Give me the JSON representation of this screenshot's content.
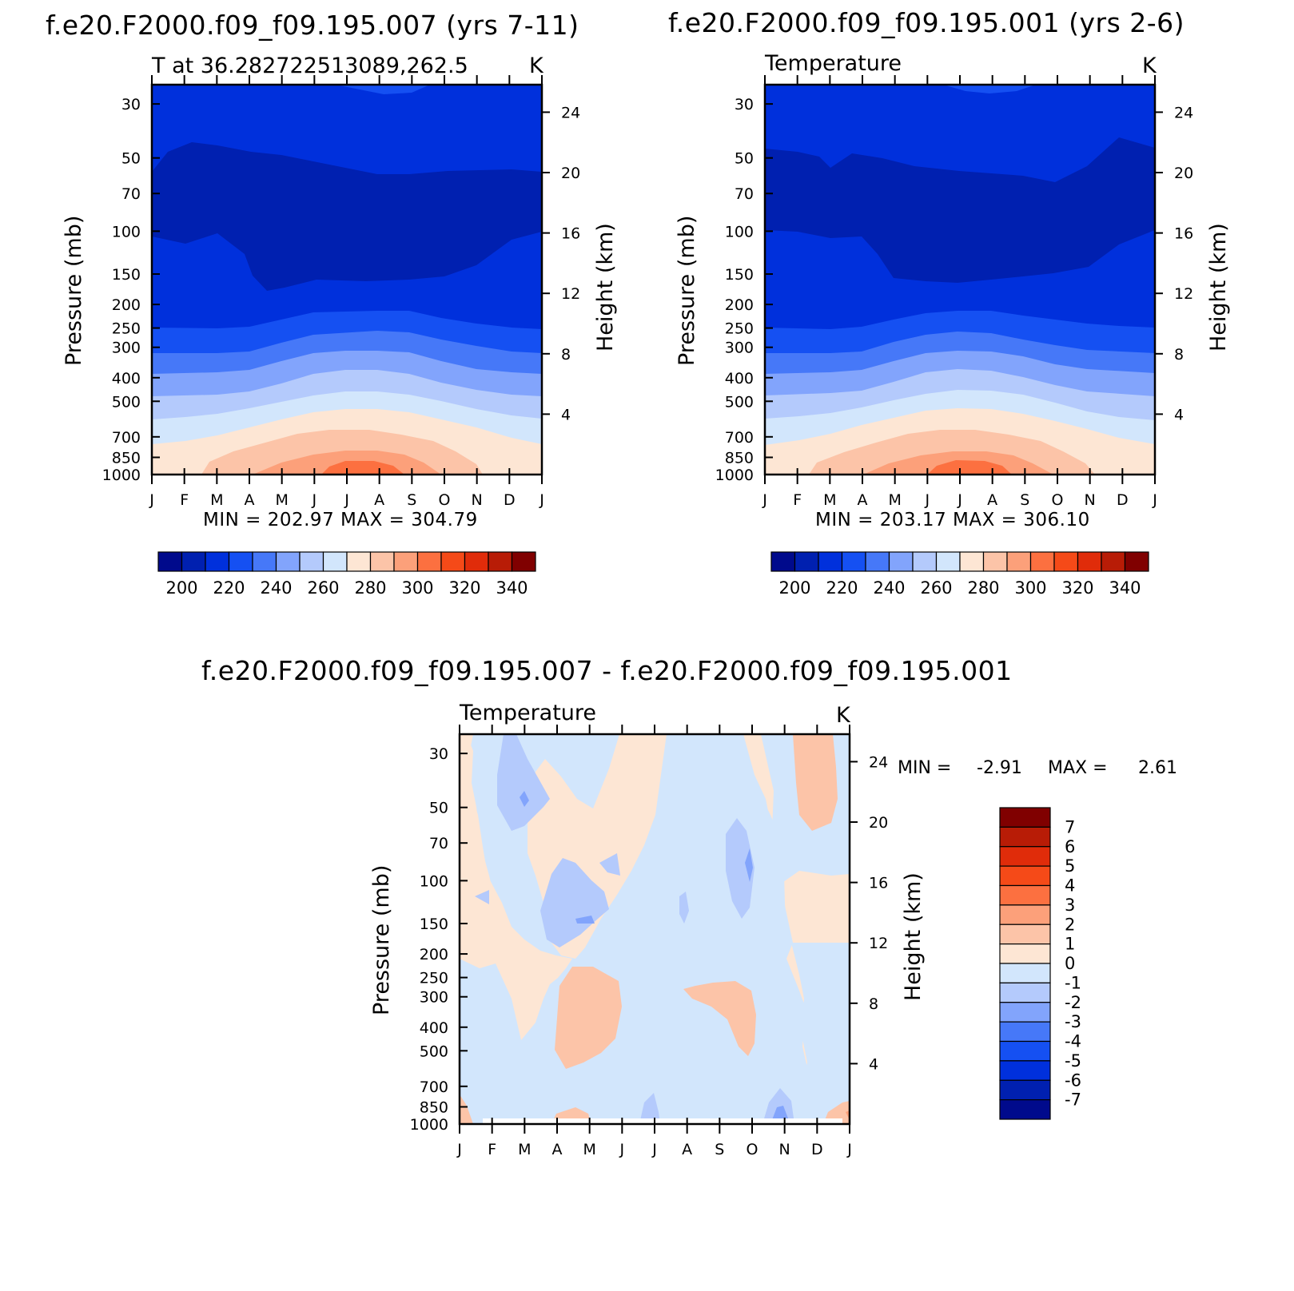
{
  "figure": {
    "top_left_title": "f.e20.F2000.f09_f09.195.007 (yrs 7-11)",
    "top_right_title": "f.e20.F2000.f09_f09.195.001 (yrs 2-6)",
    "bottom_title": "f.e20.F2000.f09_f09.195.007 - f.e20.F2000.f09_f09.195.001"
  },
  "chart_data": [
    {
      "id": "case1",
      "type": "heatmap",
      "variable_label": "T at 36.282722513089,262.5",
      "units": "K",
      "ylabel": "Pressure (mb)",
      "ylabel_right": "Height (km)",
      "x_ticks": [
        "J",
        "F",
        "M",
        "A",
        "M",
        "J",
        "J",
        "A",
        "S",
        "O",
        "N",
        "D",
        "J"
      ],
      "pressure_ticks": [
        30,
        50,
        70,
        100,
        150,
        200,
        250,
        300,
        400,
        500,
        700,
        850,
        1000
      ],
      "height_ticks": [
        24,
        20,
        16,
        12,
        8,
        4
      ],
      "stats": "MIN = 202.97 MAX = 304.79",
      "ylim": [
        1000,
        25
      ],
      "colorbar_labels": [
        "200",
        "220",
        "240",
        "260",
        "280",
        "300",
        "320",
        "340"
      ],
      "colorbar_colors": [
        "#000a8c",
        "#0020b0",
        "#0030dc",
        "#1550f2",
        "#4678f8",
        "#82a4fc",
        "#b4cafc",
        "#d2e6fc",
        "#fde6d4",
        "#fcc4a8",
        "#fca07a",
        "#fc7040",
        "#f54a18",
        "#e02c0a",
        "#b81c06",
        "#800000"
      ],
      "values_K": {
        "p_1000_jul": 304,
        "p_850_jul": 297,
        "p_850_jan": 278,
        "p_700_jan": 270,
        "p_500_jan": 258,
        "p_400_jan": 250,
        "p_300_jan": 232,
        "p_200_jan": 224,
        "p_100_jul": 203,
        "p_70_jan": 206,
        "p_30_jul": 218
      }
    },
    {
      "id": "case2",
      "type": "heatmap",
      "variable_label": "Temperature",
      "units": "K",
      "ylabel": "Pressure (mb)",
      "ylabel_right": "Height (km)",
      "x_ticks": [
        "J",
        "F",
        "M",
        "A",
        "M",
        "J",
        "J",
        "A",
        "S",
        "O",
        "N",
        "D",
        "J"
      ],
      "pressure_ticks": [
        30,
        50,
        70,
        100,
        150,
        200,
        250,
        300,
        400,
        500,
        700,
        850,
        1000
      ],
      "height_ticks": [
        24,
        20,
        16,
        12,
        8,
        4
      ],
      "stats": "MIN = 203.17 MAX = 306.10",
      "ylim": [
        1000,
        25
      ],
      "colorbar_labels": [
        "200",
        "220",
        "240",
        "260",
        "280",
        "300",
        "320",
        "340"
      ],
      "colorbar_colors": [
        "#000a8c",
        "#0020b0",
        "#0030dc",
        "#1550f2",
        "#4678f8",
        "#82a4fc",
        "#b4cafc",
        "#d2e6fc",
        "#fde6d4",
        "#fcc4a8",
        "#fca07a",
        "#fc7040",
        "#f54a18",
        "#e02c0a",
        "#b81c06",
        "#800000"
      ],
      "values_K": {
        "p_1000_jul": 305,
        "p_850_jul": 298,
        "p_850_jan": 278,
        "p_700_jan": 270,
        "p_500_jan": 258,
        "p_400_jan": 250,
        "p_300_jan": 232,
        "p_200_jan": 224,
        "p_100_jul": 203,
        "p_70_jan": 206,
        "p_30_jul": 218
      }
    },
    {
      "id": "diff",
      "type": "heatmap",
      "variable_label": "Temperature",
      "units": "K",
      "ylabel": "Pressure (mb)",
      "ylabel_right": "Height (km)",
      "x_ticks": [
        "J",
        "F",
        "M",
        "A",
        "M",
        "J",
        "J",
        "A",
        "S",
        "O",
        "N",
        "D",
        "J"
      ],
      "pressure_ticks": [
        30,
        50,
        70,
        100,
        150,
        200,
        250,
        300,
        400,
        500,
        700,
        850,
        1000
      ],
      "height_ticks": [
        24,
        20,
        16,
        12,
        8,
        4
      ],
      "stats_min_label": "MIN =",
      "stats_min": "-2.91",
      "stats_max_label": "MAX =",
      "stats_max": "2.61",
      "ylim": [
        1000,
        25
      ],
      "colorbar_labels": [
        "7",
        "6",
        "5",
        "4",
        "3",
        "2",
        "1",
        "0",
        "-1",
        "-2",
        "-3",
        "-4",
        "-5",
        "-6",
        "-7"
      ],
      "colorbar_colors": [
        "#800000",
        "#b81c06",
        "#e02c0a",
        "#f54a18",
        "#fc7040",
        "#fca07a",
        "#fcc4a8",
        "#fde6d4",
        "#d2e6fc",
        "#b4cafc",
        "#82a4fc",
        "#4678f8",
        "#1550f2",
        "#0030dc",
        "#0020b0",
        "#000a8c"
      ],
      "approx_values_K": {
        "p_300_apr_may": 1.5,
        "p_150_apr": -1.5,
        "p_100_oct": -2.5,
        "p_50_mar": -1.8,
        "p_30_jan_end": 1.5,
        "p_850_nov": -2.0
      }
    }
  ]
}
